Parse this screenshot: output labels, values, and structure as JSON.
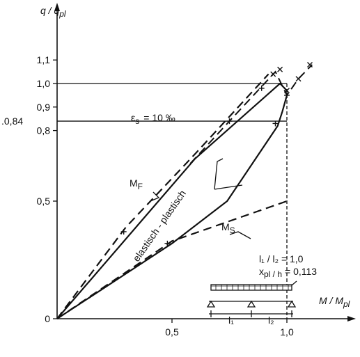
{
  "chart_data": {
    "type": "line",
    "title": "",
    "xlabel": "M / M",
    "xlabel_sub": "pl",
    "ylabel": "q / q",
    "ylabel_sub": "pl",
    "xlim": [
      0,
      1.12
    ],
    "ylim": [
      0,
      1.16
    ],
    "x_ticks": [
      {
        "value": 0.5,
        "label": "0,5"
      },
      {
        "value": 1.0,
        "label": "1,0"
      }
    ],
    "y_ticks": [
      {
        "value": 0.0,
        "label": "0"
      },
      {
        "value": 0.5,
        "label": "0,5"
      },
      {
        "value": 0.8,
        "label": "0,8"
      },
      {
        "value": 0.9,
        "label": "0,9"
      },
      {
        "value": 1.0,
        "label": "1,0"
      },
      {
        "value": 1.1,
        "label": "1,1"
      }
    ],
    "extra_y_label": {
      "value": 0.84,
      "label": "0,84"
    },
    "strain_line": {
      "y": 0.84,
      "x_end": 1.0,
      "label_main": "ε",
      "label_sub": "s",
      "label_rest": "= 10 ‰"
    },
    "limit_lines": {
      "y": 1.0,
      "x": 1.0
    },
    "series": [
      {
        "name": "M",
        "sub": "F",
        "style": "dashed",
        "points": [
          [
            0,
            0
          ],
          [
            0.3,
            0.39
          ],
          [
            0.6,
            0.7
          ],
          [
            0.92,
            1.04
          ]
        ]
      },
      {
        "name": "",
        "style": "solid",
        "points": [
          [
            0,
            0
          ],
          [
            0.6,
            0.68
          ],
          [
            0.97,
            1.0
          ],
          [
            1.0,
            0.97
          ]
        ]
      },
      {
        "name": "",
        "style": "solid",
        "points": [
          [
            0,
            0
          ],
          [
            0.5,
            0.32
          ],
          [
            0.74,
            0.5
          ],
          [
            0.96,
            0.82
          ],
          [
            0.98,
            0.88
          ],
          [
            1.0,
            0.95
          ]
        ]
      },
      {
        "name": "M",
        "sub": "S",
        "style": "dashed",
        "points": [
          [
            0,
            0
          ],
          [
            0.5,
            0.33
          ],
          [
            1.0,
            0.5
          ]
        ]
      }
    ],
    "outer_curve": {
      "style": "dashed",
      "points": [
        [
          0.58,
          0.66
        ],
        [
          0.75,
          0.84
        ],
        [
          0.95,
          1.05
        ],
        [
          1.0,
          0.95
        ],
        [
          1.05,
          1.02
        ],
        [
          1.11,
          1.08
        ]
      ]
    },
    "plus_markers": [
      [
        0.29,
        0.37
      ],
      [
        0.48,
        0.32
      ],
      [
        0.75,
        0.84
      ],
      [
        0.89,
        0.98
      ],
      [
        0.95,
        0.83
      ],
      [
        1.0,
        0.95
      ]
    ],
    "x_markers": [
      [
        0.94,
        1.04
      ],
      [
        0.97,
        1.06
      ],
      [
        1.05,
        1.02
      ],
      [
        1.1,
        1.08
      ],
      [
        1.0,
        0.97
      ]
    ],
    "region_label": "elastisch - plastisch",
    "ratio_label": "l₁ / l₂ = 1,0",
    "xpl_label": "x",
    "xpl_sub": "pl / h",
    "xpl_value": "= 0,113",
    "span_labels": [
      "l₁",
      "l₂"
    ]
  }
}
